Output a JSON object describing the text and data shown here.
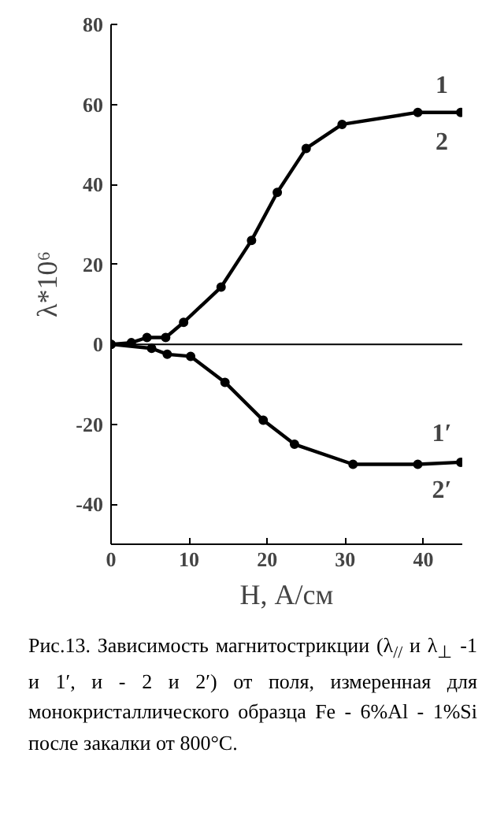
{
  "chart_data": {
    "type": "line",
    "xlabel": "H, А/см",
    "ylabel": "λ*10⁶",
    "xlim": [
      0,
      45
    ],
    "ylim": [
      -50,
      80
    ],
    "xticks": [
      0,
      10,
      20,
      30,
      40
    ],
    "yticks": [
      -40,
      -20,
      0,
      20,
      40,
      60,
      80
    ],
    "grid": false,
    "marker": "circle",
    "line_style": "solid",
    "series": [
      {
        "color": "#000000",
        "x": [
          0,
          2.6,
          4.6,
          7,
          9.3,
          14.1,
          18,
          21.3,
          25,
          29.6,
          39.3,
          44.8
        ],
        "values": [
          0,
          0.4,
          1.7,
          1.7,
          5.5,
          14.3,
          26,
          38,
          49,
          55,
          58,
          58
        ]
      },
      {
        "color": "#000000",
        "x": [
          0,
          5.2,
          7.2,
          10.2,
          14.6,
          19.5,
          23.5,
          31,
          39.3,
          44.8
        ],
        "values": [
          0,
          -1,
          -2.5,
          -3,
          -9.5,
          -19,
          -25,
          -30,
          -30,
          -29.5
        ]
      }
    ],
    "ref_lines": [
      {
        "axis": "y",
        "value": 0,
        "color": "#000000"
      }
    ],
    "annotations": [
      "1",
      "2",
      "1′",
      "2′",
      "Рис.13. Зависимость магнитострикции (λ$_{//}$ и λ$_{⊥}$ -1 и 1′,  и  - 2 и 2′) от поля, измеренная для монокристаллического образца Fe - 6%Al - 1%Si после закалки от 800°С."
    ]
  }
}
